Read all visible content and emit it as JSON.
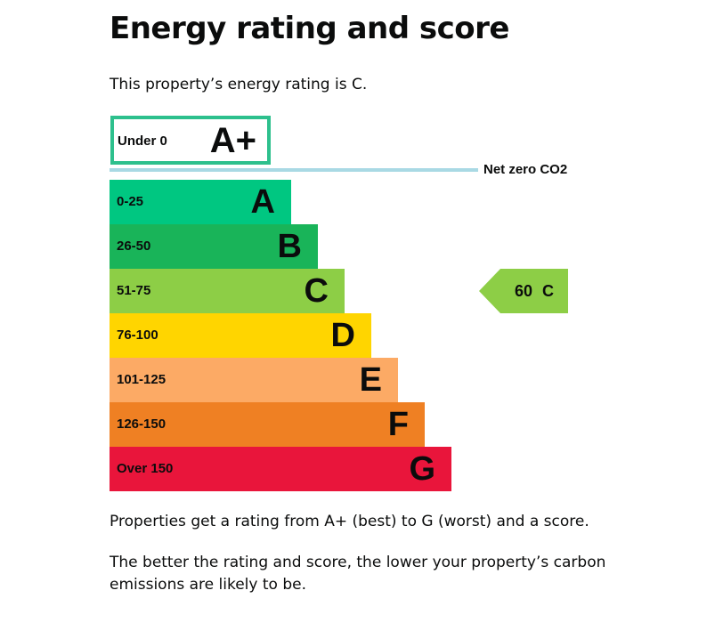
{
  "title": "Energy rating and score",
  "intro": "This property’s energy rating is C.",
  "net_zero_label": "Net zero CO2",
  "bands": [
    {
      "range": "Under 0",
      "letter": "A+",
      "color": "#2dc08d"
    },
    {
      "range": "0-25",
      "letter": "A",
      "color": "#00c781"
    },
    {
      "range": "26-50",
      "letter": "B",
      "color": "#19b459"
    },
    {
      "range": "51-75",
      "letter": "C",
      "color": "#8dce46"
    },
    {
      "range": "76-100",
      "letter": "D",
      "color": "#ffd500"
    },
    {
      "range": "101-125",
      "letter": "E",
      "color": "#fcaa65"
    },
    {
      "range": "126-150",
      "letter": "F",
      "color": "#ef8023"
    },
    {
      "range": "Over 150",
      "letter": "G",
      "color": "#e9153b"
    }
  ],
  "current": {
    "score": "60",
    "rating": "C",
    "label": "60 C",
    "color": "#8dce46"
  },
  "note1": "Properties get a rating from A+ (best) to G (worst) and a score.",
  "note2": "The better the rating and score, the lower your property’s carbon emissions are likely to be."
}
